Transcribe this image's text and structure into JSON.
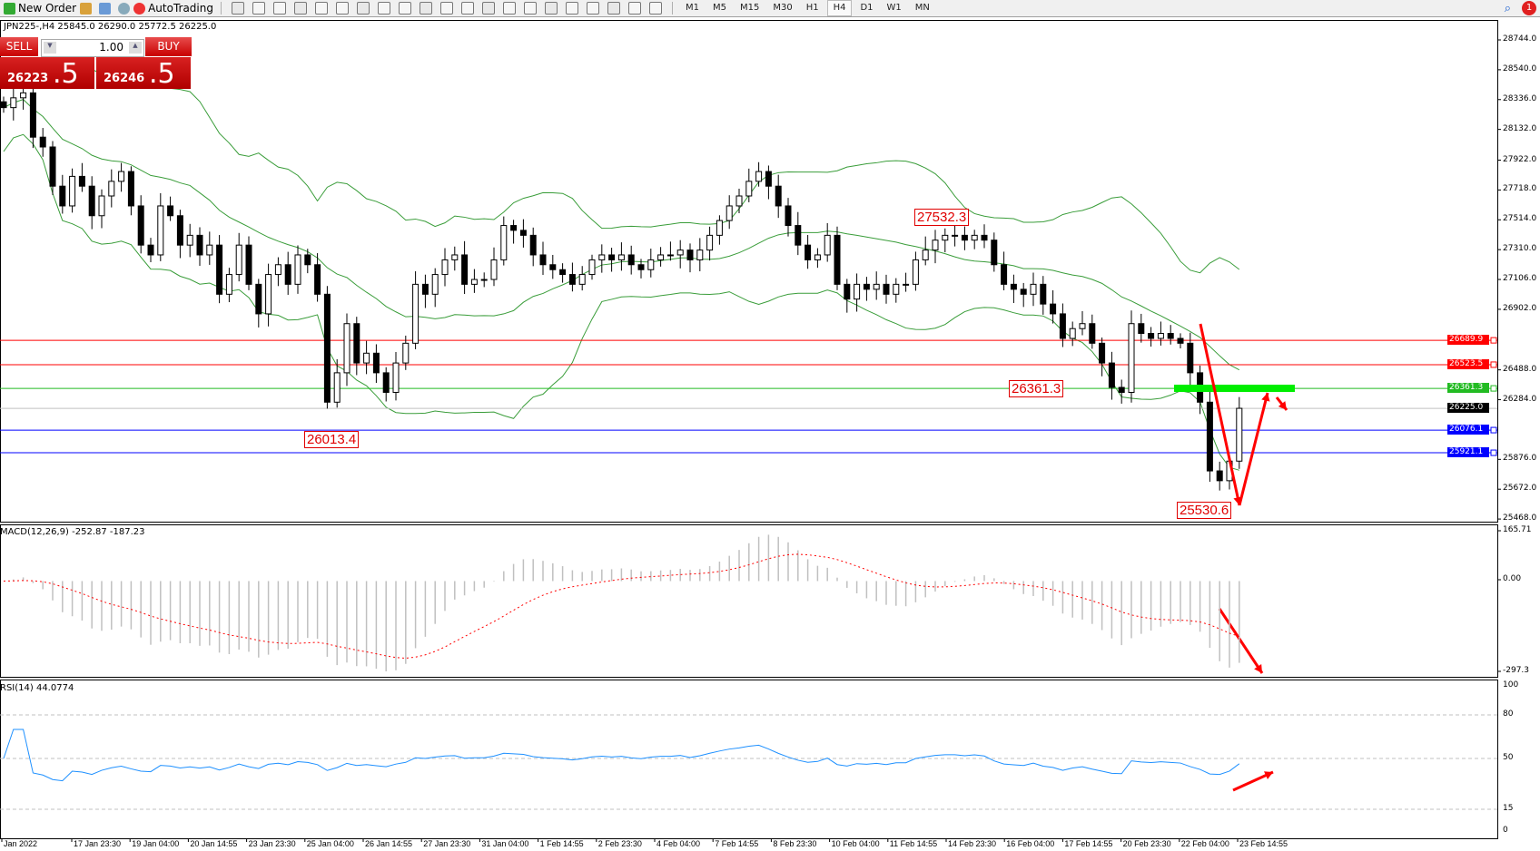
{
  "toolbar": {
    "new_order": "New Order",
    "autotrading": "AutoTrading",
    "timeframes": [
      "M1",
      "M5",
      "M15",
      "M30",
      "H1",
      "H4",
      "D1",
      "W1",
      "MN"
    ],
    "active_timeframe": "H4",
    "notification_count": "1",
    "icons": [
      "chart-bar-icon",
      "candle-icon",
      "line-chart-icon",
      "zoom-in-icon",
      "zoom-out-icon",
      "tile-windows-icon",
      "autoscroll-icon",
      "chart-shift-icon",
      "indicators-icon",
      "periods-icon",
      "templates-icon",
      "cursor-icon",
      "crosshair-icon",
      "vertical-line-icon",
      "horizontal-line-icon",
      "trendline-icon",
      "channel-icon",
      "fibonacci-icon",
      "text-icon",
      "text-label-icon",
      "arrows-icon"
    ]
  },
  "header": {
    "symbol_info": "JPN225-,H4  25845.0 26290.0 25772.5 26225.0"
  },
  "trade_panel": {
    "sell_label": "SELL",
    "buy_label": "BUY",
    "lot": "1.00",
    "sell_big": "26223",
    "sell_frac": ".5",
    "buy_big": "26246",
    "buy_frac": ".5"
  },
  "colors": {
    "bull": "#ffffff",
    "bear": "#000000",
    "bands": "#3a9d3a",
    "red_line": "#ff0000",
    "green_line": "#33cc33",
    "blue_line": "#0000ff",
    "rsi": "#1e90ff",
    "macd_hist": "#c0c0c0",
    "macd_signal": "#ff0000"
  },
  "annotations": [
    {
      "text": "27532.3"
    },
    {
      "text": "26361.3"
    },
    {
      "text": "26013.4"
    },
    {
      "text": "25530.6"
    }
  ],
  "chart_data": [
    {
      "type": "candlestick",
      "symbol": "JPN225-",
      "timeframe": "H4",
      "ylim": [
        25468.0,
        28744.0
      ],
      "y_ticks": [
        "28744.0",
        "28540.0",
        "28336.0",
        "28132.0",
        "27922.0",
        "27718.0",
        "27514.0",
        "27310.0",
        "27106.0",
        "26902.0",
        "26488.0",
        "26284.0",
        "25876.0",
        "25672.0",
        "25468.0"
      ],
      "x_ticks": [
        "Jan 2022",
        "17 Jan 23:30",
        "19 Jan 04:00",
        "20 Jan 14:55",
        "23 Jan 23:30",
        "25 Jan 04:00",
        "26 Jan 14:55",
        "27 Jan 23:30",
        "31 Jan 04:00",
        "1 Feb 14:55",
        "2 Feb 23:30",
        "4 Feb 04:00",
        "7 Feb 14:55",
        "8 Feb 23:30",
        "10 Feb 04:00",
        "11 Feb 14:55",
        "14 Feb 23:30",
        "16 Feb 04:00",
        "17 Feb 14:55",
        "20 Feb 23:30",
        "22 Feb 04:00",
        "23 Feb 14:55"
      ],
      "closes": [
        28281,
        28348,
        28382,
        28079,
        28012,
        27744,
        27609,
        27811,
        27744,
        27542,
        27677,
        27777,
        27844,
        27609,
        27341,
        27274,
        27609,
        27542,
        27341,
        27408,
        27274,
        27341,
        27005,
        27140,
        27341,
        27073,
        26871,
        27140,
        27207,
        27073,
        27274,
        27207,
        27005,
        26267,
        26468,
        26804,
        26535,
        26602,
        26468,
        26334,
        26535,
        26670,
        27073,
        27005,
        27140,
        27240,
        27274,
        27073,
        27106,
        27106,
        27240,
        27475,
        27442,
        27408,
        27274,
        27207,
        27173,
        27140,
        27073,
        27140,
        27240,
        27274,
        27240,
        27274,
        27207,
        27173,
        27240,
        27274,
        27274,
        27307,
        27240,
        27307,
        27408,
        27509,
        27609,
        27677,
        27777,
        27844,
        27744,
        27609,
        27475,
        27341,
        27240,
        27274,
        27408,
        27073,
        26972,
        27073,
        27039,
        27073,
        27005,
        27073,
        27073,
        27240,
        27307,
        27375,
        27408,
        27408,
        27375,
        27408,
        27375,
        27207,
        27073,
        27039,
        27005,
        27073,
        26938,
        26871,
        26703,
        26770,
        26804,
        26670,
        26535,
        26368,
        26334,
        26804,
        26737,
        26703,
        26737,
        26703,
        26670,
        26468,
        26267,
        25797,
        25730,
        25864,
        26225
      ],
      "levels": [
        {
          "price": 26689.9,
          "label": "26689.9",
          "color": "#ff0000"
        },
        {
          "price": 26523.5,
          "label": "26523.5",
          "color": "#ff0000"
        },
        {
          "price": 26361.3,
          "label": "26361.3",
          "color": "#22bb22"
        },
        {
          "price": 26225.0,
          "label": "26225.0",
          "color": "#000000",
          "current": true
        },
        {
          "price": 26076.1,
          "label": "26076.1",
          "color": "#0000ff"
        },
        {
          "price": 25921.1,
          "label": "25921.1",
          "color": "#0000ff"
        }
      ]
    },
    {
      "type": "bar+line",
      "label": "MACD(12,26,9) -252.87 -187.23",
      "ylim": [
        -297.3,
        165.71
      ],
      "y_ticks": [
        "165.71",
        "0.00",
        "-297.3"
      ]
    },
    {
      "type": "line",
      "label": "RSI(14) 44.0774",
      "ylim": [
        0,
        100
      ],
      "levels": [
        80,
        50,
        15
      ],
      "y_ticks": [
        "100",
        "80",
        "50",
        "15",
        "0"
      ]
    }
  ]
}
